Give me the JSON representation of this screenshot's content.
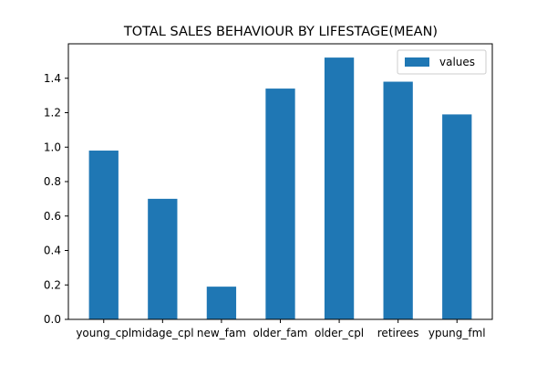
{
  "chart_data": {
    "type": "bar",
    "title": "TOTAL SALES BEHAVIOUR BY LIFESTAGE(MEAN)",
    "xlabel": "",
    "ylabel": "",
    "categories": [
      "young_cpl",
      "midage_cpl",
      "new_fam",
      "older_fam",
      "older_cpl",
      "retirees",
      "ypung_fml"
    ],
    "series": [
      {
        "name": "values",
        "values": [
          0.98,
          0.7,
          0.19,
          1.34,
          1.52,
          1.38,
          1.19
        ]
      }
    ],
    "ylim": [
      0,
      1.6
    ],
    "yticks": [
      0.0,
      0.2,
      0.4,
      0.6,
      0.8,
      1.0,
      1.2,
      1.4
    ],
    "ytick_labels": [
      "0.0",
      "0.2",
      "0.4",
      "0.6",
      "0.8",
      "1.0",
      "1.2",
      "1.4"
    ],
    "grid": false,
    "legend_position": "top-right",
    "bar_color": "#1f77b4"
  }
}
